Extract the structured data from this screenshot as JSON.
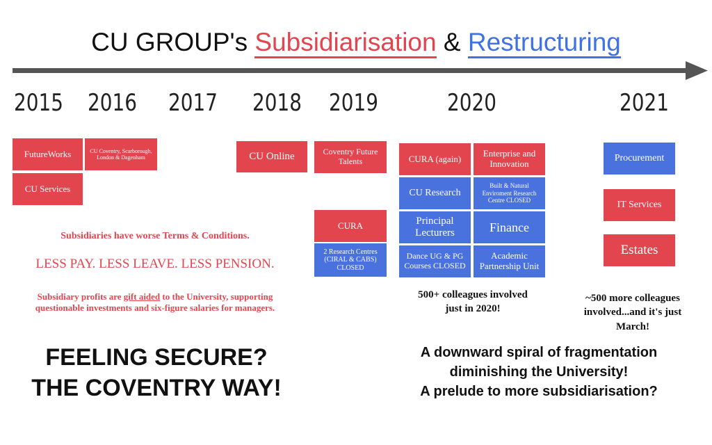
{
  "title": {
    "prefix": "CU GROUP's ",
    "red_word": "Subsidiarisation",
    "joiner": " & ",
    "blue_word": "Restructuring"
  },
  "years": [
    "2015",
    "2016",
    "2017",
    "2018",
    "2019",
    "2020",
    "2021"
  ],
  "boxes": {
    "futureworks": "FutureWorks",
    "cu_coventry": "CU Coventry, Scarborough, London & Dagenham",
    "cu_services": "CU Services",
    "cu_online": "CU Online",
    "coventry_future_talents": "Coventry Future Talents",
    "cura_2019": "CURA",
    "research_centres": "2 Research Centres (CIRAL & CABS) CLOSED",
    "cura_again": "CURA (again)",
    "enterprise": "Enterprise and Innovation",
    "cu_research": "CU Research",
    "built_natural": "Built & Natural Enviroment Research Centre CLOSED",
    "principal_lecturers": "Principal Lecturers",
    "finance": "Finance",
    "dance": "Dance UG & PG Courses CLOSED",
    "academic_partnership": "Academic Partnership Unit",
    "procurement": "Procurement",
    "it_services": "IT Services",
    "estates": "Estates"
  },
  "notes": {
    "terms": "Subsidiaries have worse Terms & Conditions.",
    "less": "LESS PAY. LESS LEAVE. LESS PENSION.",
    "profits_a": "Subsidiary profits are ",
    "profits_u": "gift aided",
    "profits_b": " to the University, supporting",
    "profits_line2": "questionable investments and six-figure salaries for managers.",
    "colleagues_2020_1": "500+ colleagues involved",
    "colleagues_2020_2": "just in 2020!",
    "colleagues_2021_1": "~500  more colleagues",
    "colleagues_2021_2": "involved...and it's just",
    "colleagues_2021_3": "March!"
  },
  "slogans": {
    "left_1": "FEELING SECURE?",
    "left_2": "THE COVENTRY WAY!",
    "right_1": "A downward spiral of fragmentation",
    "right_2": "diminishing the University!",
    "right_3": "A prelude to more subsidiarisation?"
  },
  "colors": {
    "red": "#e3454f",
    "blue": "#4a72df",
    "arrow": "#555555"
  }
}
